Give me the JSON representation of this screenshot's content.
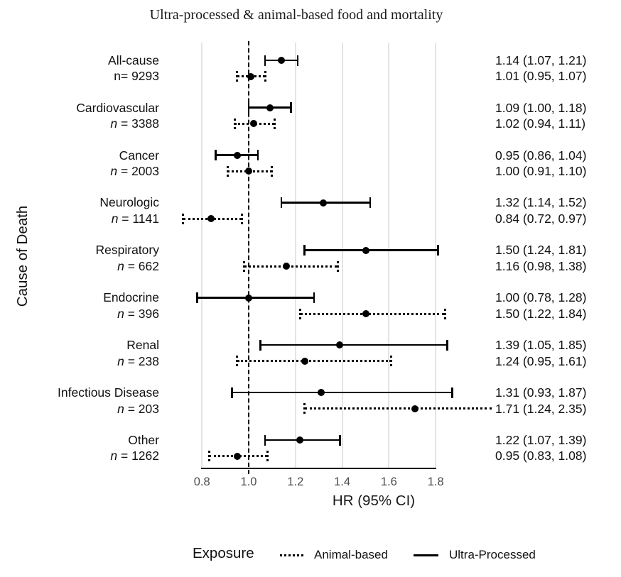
{
  "chart_data": {
    "type": "scatter",
    "subtype": "forest-plot",
    "title": "Ultra-processed & animal-based food and mortality",
    "xlabel": "HR (95% CI)",
    "ylabel": "Cause of Death",
    "x_ticks": [
      0.8,
      1.0,
      1.2,
      1.4,
      1.6,
      1.8
    ],
    "x_tick_labels": [
      "0.8",
      "1.0",
      "1.2",
      "1.4",
      "1.6",
      "1.8"
    ],
    "x_axis_range": [
      0.8,
      1.8
    ],
    "reference_line": 1.0,
    "grid": true,
    "legend_position": "bottom",
    "legend": {
      "title": "Exposure",
      "entries": [
        {
          "label": "Animal-based",
          "line_style": "dotted"
        },
        {
          "label": "Ultra-Processed",
          "line_style": "solid"
        }
      ]
    },
    "colors": {
      "line": "#000000",
      "point": "#000000",
      "gridline": "#e4e4e4",
      "tick_text": "#4d4d4d"
    },
    "groups": [
      {
        "cause": "All-cause",
        "n_text": "n= 9293",
        "n_italic": false,
        "rows": [
          {
            "exposure": "Ultra-Processed",
            "line_style": "solid",
            "hr": 1.14,
            "ci_low": 1.07,
            "ci_high": 1.21,
            "label": "1.14 (1.07, 1.21)"
          },
          {
            "exposure": "Animal-based",
            "line_style": "dotted",
            "hr": 1.01,
            "ci_low": 0.95,
            "ci_high": 1.07,
            "label": "1.01 (0.95, 1.07)"
          }
        ]
      },
      {
        "cause": "Cardiovascular",
        "n_text": "n = 3388",
        "n_italic": true,
        "rows": [
          {
            "exposure": "Ultra-Processed",
            "line_style": "solid",
            "hr": 1.09,
            "ci_low": 1.0,
            "ci_high": 1.18,
            "label": "1.09 (1.00, 1.18)"
          },
          {
            "exposure": "Animal-based",
            "line_style": "dotted",
            "hr": 1.02,
            "ci_low": 0.94,
            "ci_high": 1.11,
            "label": "1.02 (0.94, 1.11)"
          }
        ]
      },
      {
        "cause": "Cancer",
        "n_text": "n = 2003",
        "n_italic": true,
        "rows": [
          {
            "exposure": "Ultra-Processed",
            "line_style": "solid",
            "hr": 0.95,
            "ci_low": 0.86,
            "ci_high": 1.04,
            "label": "0.95 (0.86, 1.04)"
          },
          {
            "exposure": "Animal-based",
            "line_style": "dotted",
            "hr": 1.0,
            "ci_low": 0.91,
            "ci_high": 1.1,
            "label": "1.00 (0.91, 1.10)"
          }
        ]
      },
      {
        "cause": "Neurologic",
        "n_text": "n = 1141",
        "n_italic": true,
        "rows": [
          {
            "exposure": "Ultra-Processed",
            "line_style": "solid",
            "hr": 1.32,
            "ci_low": 1.14,
            "ci_high": 1.52,
            "label": "1.32 (1.14, 1.52)"
          },
          {
            "exposure": "Animal-based",
            "line_style": "dotted",
            "hr": 0.84,
            "ci_low": 0.72,
            "ci_high": 0.97,
            "label": "0.84 (0.72, 0.97)"
          }
        ]
      },
      {
        "cause": "Respiratory",
        "n_text": "n = 662",
        "n_italic": true,
        "rows": [
          {
            "exposure": "Ultra-Processed",
            "line_style": "solid",
            "hr": 1.5,
            "ci_low": 1.24,
            "ci_high": 1.81,
            "label": "1.50 (1.24, 1.81)"
          },
          {
            "exposure": "Animal-based",
            "line_style": "dotted",
            "hr": 1.16,
            "ci_low": 0.98,
            "ci_high": 1.38,
            "label": "1.16 (0.98, 1.38)"
          }
        ]
      },
      {
        "cause": "Endocrine",
        "n_text": "n = 396",
        "n_italic": true,
        "rows": [
          {
            "exposure": "Ultra-Processed",
            "line_style": "solid",
            "hr": 1.0,
            "ci_low": 0.78,
            "ci_high": 1.28,
            "label": "1.00 (0.78, 1.28)"
          },
          {
            "exposure": "Animal-based",
            "line_style": "dotted",
            "hr": 1.5,
            "ci_low": 1.22,
            "ci_high": 1.84,
            "label": "1.50 (1.22, 1.84)"
          }
        ]
      },
      {
        "cause": "Renal",
        "n_text": "n = 238",
        "n_italic": true,
        "rows": [
          {
            "exposure": "Ultra-Processed",
            "line_style": "solid",
            "hr": 1.39,
            "ci_low": 1.05,
            "ci_high": 1.85,
            "label": "1.39 (1.05, 1.85)"
          },
          {
            "exposure": "Animal-based",
            "line_style": "dotted",
            "hr": 1.24,
            "ci_low": 0.95,
            "ci_high": 1.61,
            "label": "1.24 (0.95, 1.61)"
          }
        ]
      },
      {
        "cause": "Infectious Disease",
        "n_text": "n = 203",
        "n_italic": true,
        "rows": [
          {
            "exposure": "Ultra-Processed",
            "line_style": "solid",
            "hr": 1.31,
            "ci_low": 0.93,
            "ci_high": 1.87,
            "label": "1.31 (0.93, 1.87)"
          },
          {
            "exposure": "Animal-based",
            "line_style": "dotted",
            "hr": 1.71,
            "ci_low": 1.24,
            "ci_high": 2.35,
            "label": "1.71 (1.24, 2.35)"
          }
        ]
      },
      {
        "cause": "Other",
        "n_text": "n = 1262",
        "n_italic": true,
        "rows": [
          {
            "exposure": "Ultra-Processed",
            "line_style": "solid",
            "hr": 1.22,
            "ci_low": 1.07,
            "ci_high": 1.39,
            "label": "1.22 (1.07, 1.39)"
          },
          {
            "exposure": "Animal-based",
            "line_style": "dotted",
            "hr": 0.95,
            "ci_low": 0.83,
            "ci_high": 1.08,
            "label": "0.95 (0.83, 1.08)"
          }
        ]
      }
    ]
  }
}
